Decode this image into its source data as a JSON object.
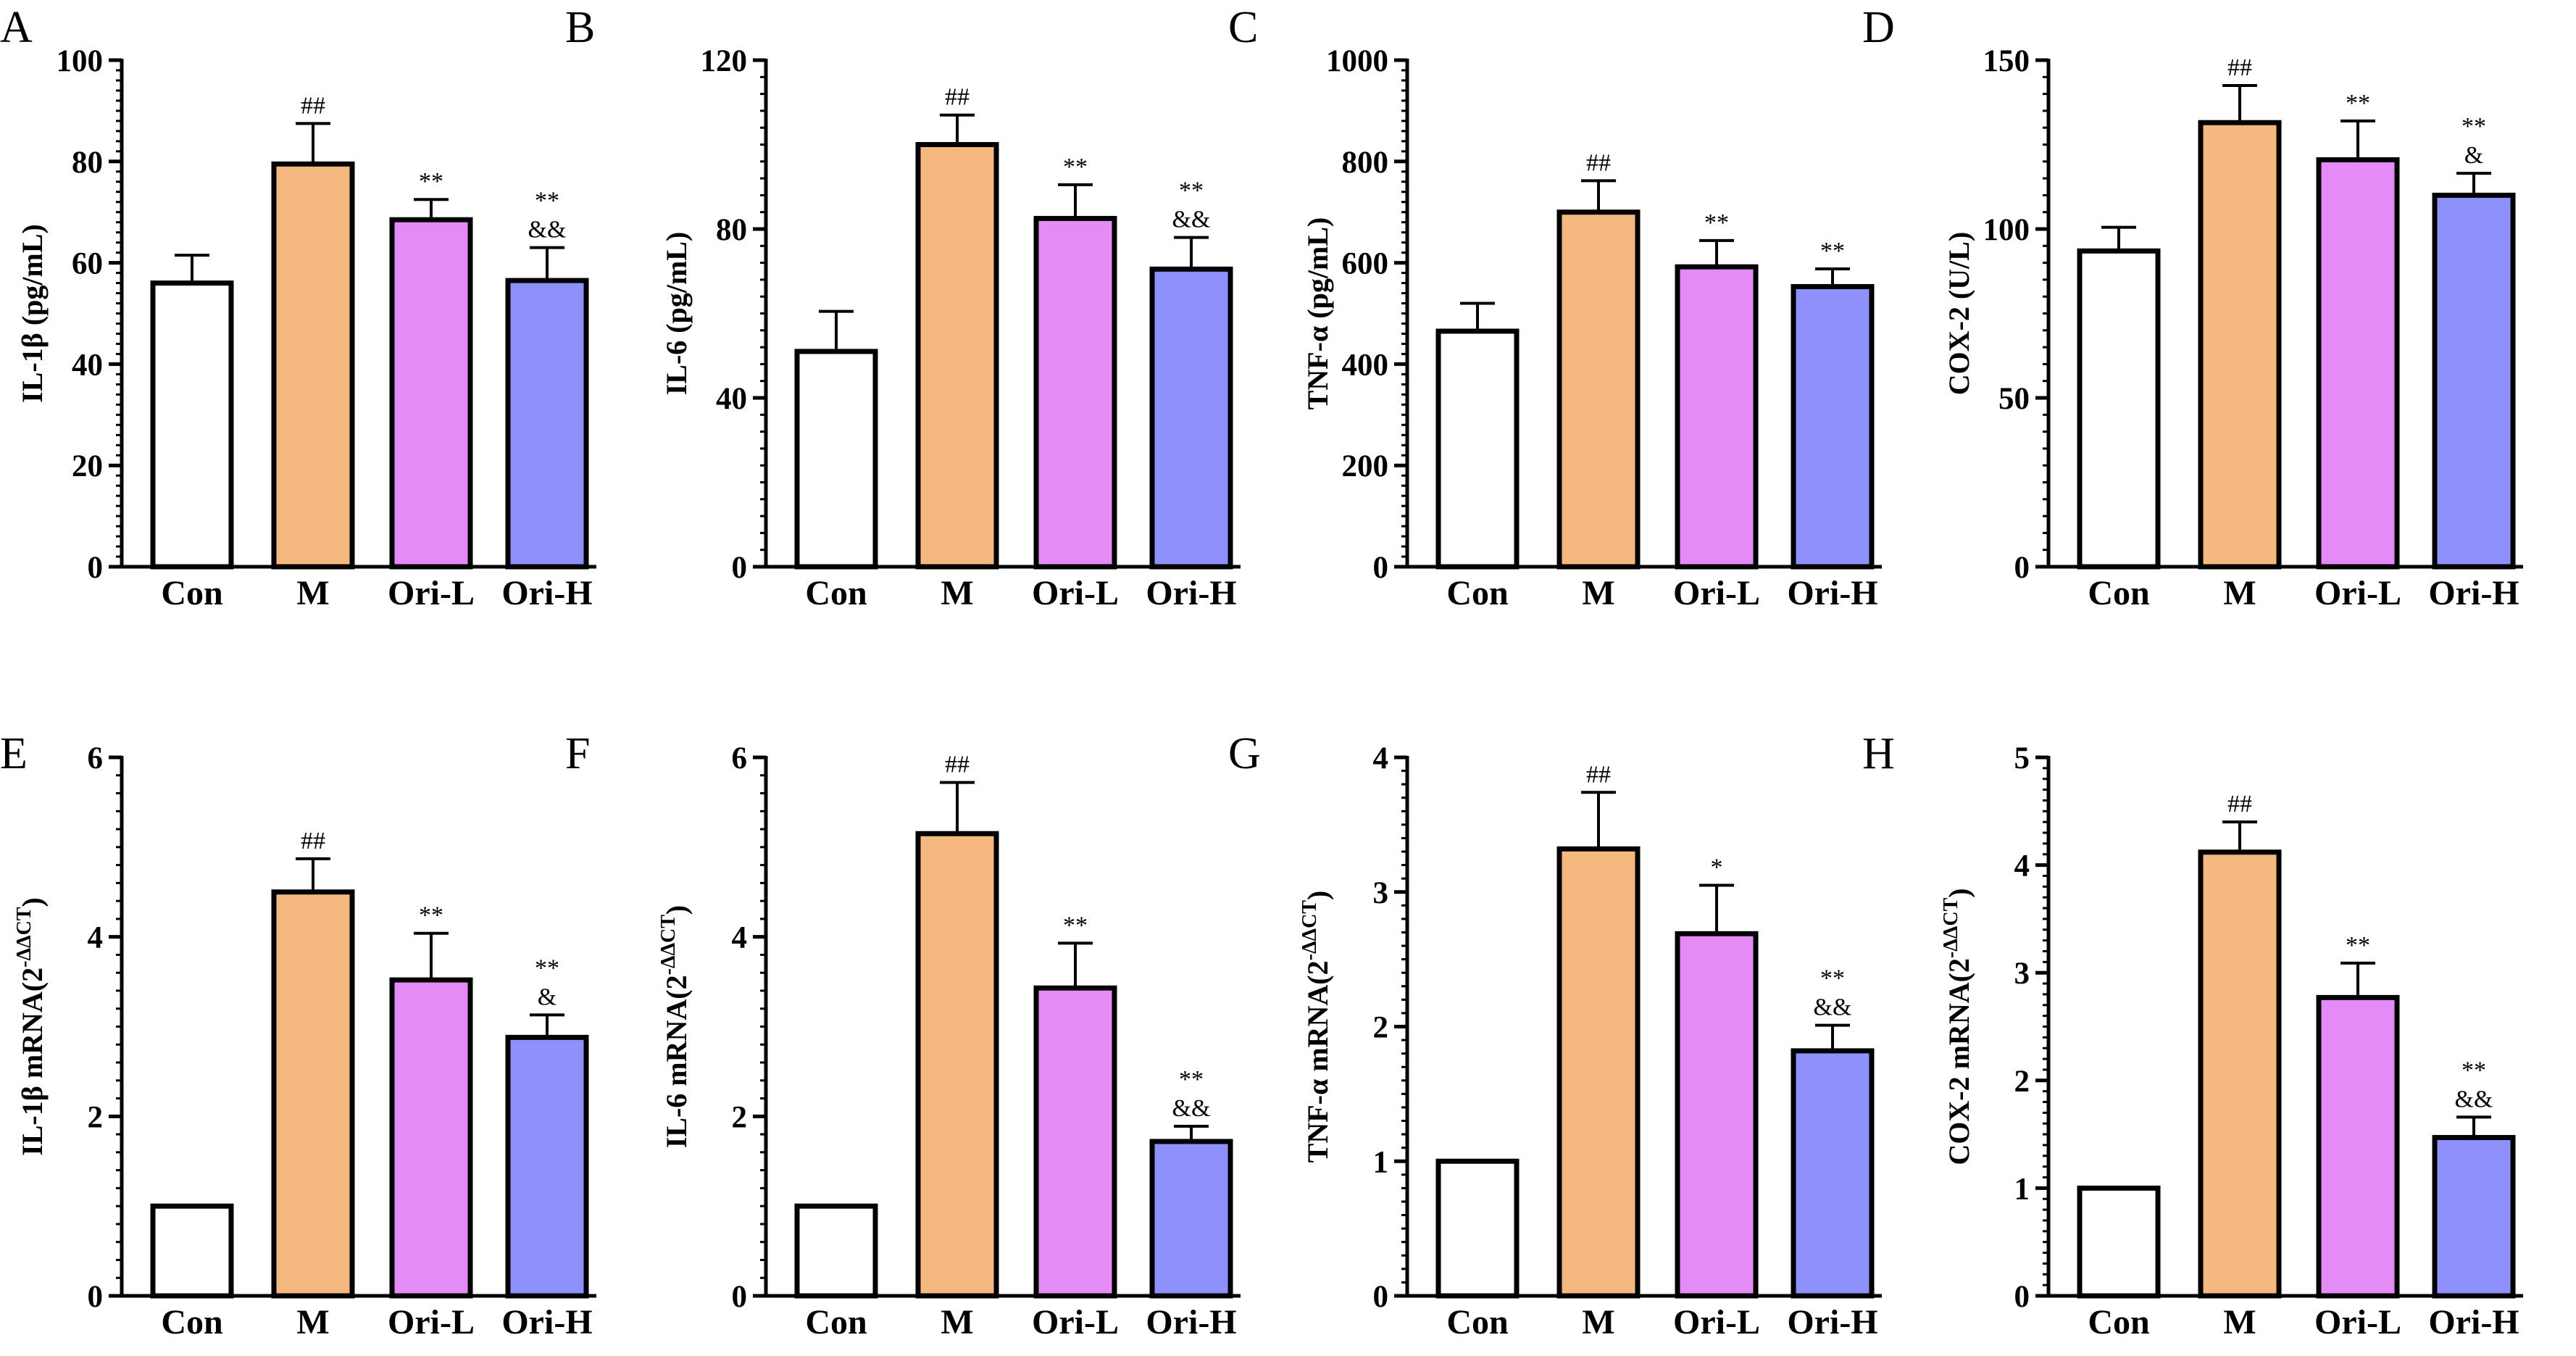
{
  "colors": {
    "Con": "#ffffff",
    "M": "#f5b97f",
    "Ori-L": "#e58bf7",
    "Ori-H": "#8e90fb",
    "edge": "#000000"
  },
  "chart_data": [
    {
      "letter": "A",
      "type": "bar",
      "title": "",
      "categories": [
        "Con",
        "M",
        "Ori-L",
        "Ori-H"
      ],
      "values": [
        56,
        79.5,
        68.5,
        56.5
      ],
      "errors": [
        5.5,
        8,
        4,
        6.5
      ],
      "annotations": [
        [],
        [
          "##"
        ],
        [
          "**"
        ],
        [
          "**",
          "&&"
        ]
      ],
      "ylim": [
        0,
        100
      ],
      "ticks": [
        0,
        20,
        40,
        60,
        80,
        100
      ],
      "tick_labels": [
        "0",
        "20",
        "40",
        "60",
        "80",
        "100"
      ],
      "ylabel": "IL-1β (pg/mL)",
      "ylabel_sup": "",
      "ylabel_end": "",
      "xlabel": ""
    },
    {
      "letter": "B",
      "type": "bar",
      "title": "",
      "categories": [
        "Con",
        "M",
        "Ori-L",
        "Ori-H"
      ],
      "values": [
        51,
        100,
        82.5,
        70.5
      ],
      "errors": [
        9.5,
        7,
        8,
        7.5
      ],
      "annotations": [
        [],
        [
          "##"
        ],
        [
          "**"
        ],
        [
          "**",
          "&&"
        ]
      ],
      "ylim": [
        0,
        120
      ],
      "ticks": [
        0,
        40,
        80,
        120
      ],
      "tick_labels": [
        "0",
        "40",
        "80",
        "120"
      ],
      "ylabel": "IL-6 (pg/mL)",
      "ylabel_sup": "",
      "ylabel_end": "",
      "xlabel": ""
    },
    {
      "letter": "C",
      "type": "bar",
      "title": "",
      "categories": [
        "Con",
        "M",
        "Ori-L",
        "Ori-H"
      ],
      "values": [
        465,
        700,
        592,
        553
      ],
      "errors": [
        55,
        62,
        52,
        35
      ],
      "annotations": [
        [],
        [
          "##"
        ],
        [
          "**"
        ],
        [
          "**"
        ]
      ],
      "ylim": [
        0,
        1000
      ],
      "ticks": [
        0,
        200,
        400,
        600,
        800,
        1000
      ],
      "tick_labels": [
        "0",
        "200",
        "400",
        "600",
        "800",
        "1000"
      ],
      "ylabel": "TNF-α (pg/mL)",
      "ylabel_sup": "",
      "ylabel_end": "",
      "xlabel": ""
    },
    {
      "letter": "D",
      "type": "bar",
      "title": "",
      "categories": [
        "Con",
        "M",
        "Ori-L",
        "Ori-H"
      ],
      "values": [
        93.5,
        131.5,
        120.5,
        110
      ],
      "errors": [
        7,
        11,
        11.5,
        6.5
      ],
      "annotations": [
        [],
        [
          "##"
        ],
        [
          "**"
        ],
        [
          "**",
          "&"
        ]
      ],
      "ylim": [
        0,
        150
      ],
      "ticks": [
        0,
        50,
        100,
        150
      ],
      "tick_labels": [
        "0",
        "50",
        "100",
        "150"
      ],
      "ylabel": "COX-2 (U/L)",
      "ylabel_sup": "",
      "ylabel_end": "",
      "xlabel": ""
    },
    {
      "letter": "E",
      "type": "bar",
      "title": "",
      "categories": [
        "Con",
        "M",
        "Ori-L",
        "Ori-H"
      ],
      "values": [
        1,
        4.5,
        3.52,
        2.88
      ],
      "errors": [
        0,
        0.37,
        0.52,
        0.25
      ],
      "annotations": [
        [],
        [
          "##"
        ],
        [
          "**"
        ],
        [
          "**",
          "&"
        ]
      ],
      "ylim": [
        0,
        6
      ],
      "ticks": [
        0,
        2,
        4,
        6
      ],
      "tick_labels": [
        "0",
        "2",
        "4",
        "6"
      ],
      "ylabel": "IL-1β mRNA(2",
      "ylabel_sup": "-ΔΔCT",
      "ylabel_end": ")",
      "xlabel": ""
    },
    {
      "letter": "F",
      "type": "bar",
      "title": "",
      "categories": [
        "Con",
        "M",
        "Ori-L",
        "Ori-H"
      ],
      "values": [
        1,
        5.15,
        3.43,
        1.72
      ],
      "errors": [
        0,
        0.57,
        0.5,
        0.17
      ],
      "annotations": [
        [],
        [
          "##"
        ],
        [
          "**"
        ],
        [
          "**",
          "&&"
        ]
      ],
      "ylim": [
        0,
        6
      ],
      "ticks": [
        0,
        2,
        4,
        6
      ],
      "tick_labels": [
        "0",
        "2",
        "4",
        "6"
      ],
      "ylabel": "IL-6 mRNA(2",
      "ylabel_sup": "-ΔΔCT",
      "ylabel_end": ")",
      "xlabel": ""
    },
    {
      "letter": "G",
      "type": "bar",
      "title": "",
      "categories": [
        "Con",
        "M",
        "Ori-L",
        "Ori-H"
      ],
      "values": [
        1,
        3.32,
        2.69,
        1.82
      ],
      "errors": [
        0,
        0.42,
        0.36,
        0.19
      ],
      "annotations": [
        [],
        [
          "##"
        ],
        [
          "*"
        ],
        [
          "**",
          "&&"
        ]
      ],
      "ylim": [
        0,
        4
      ],
      "ticks": [
        0,
        1,
        2,
        3,
        4
      ],
      "tick_labels": [
        "0",
        "1",
        "2",
        "3",
        "4"
      ],
      "ylabel": "TNF-α mRNA(2",
      "ylabel_sup": "-ΔΔCT",
      "ylabel_end": ")",
      "xlabel": ""
    },
    {
      "letter": "H",
      "type": "bar",
      "title": "",
      "categories": [
        "Con",
        "M",
        "Ori-L",
        "Ori-H"
      ],
      "values": [
        1,
        4.12,
        2.77,
        1.47
      ],
      "errors": [
        0,
        0.28,
        0.32,
        0.19
      ],
      "annotations": [
        [],
        [
          "##"
        ],
        [
          "**"
        ],
        [
          "**",
          "&&"
        ]
      ],
      "ylim": [
        0,
        5
      ],
      "ticks": [
        0,
        1,
        2,
        3,
        4,
        5
      ],
      "tick_labels": [
        "0",
        "1",
        "2",
        "3",
        "4",
        "5"
      ],
      "ylabel": "COX-2 mRNA(2",
      "ylabel_sup": "-ΔΔCT",
      "ylabel_end": ")",
      "xlabel": ""
    }
  ]
}
